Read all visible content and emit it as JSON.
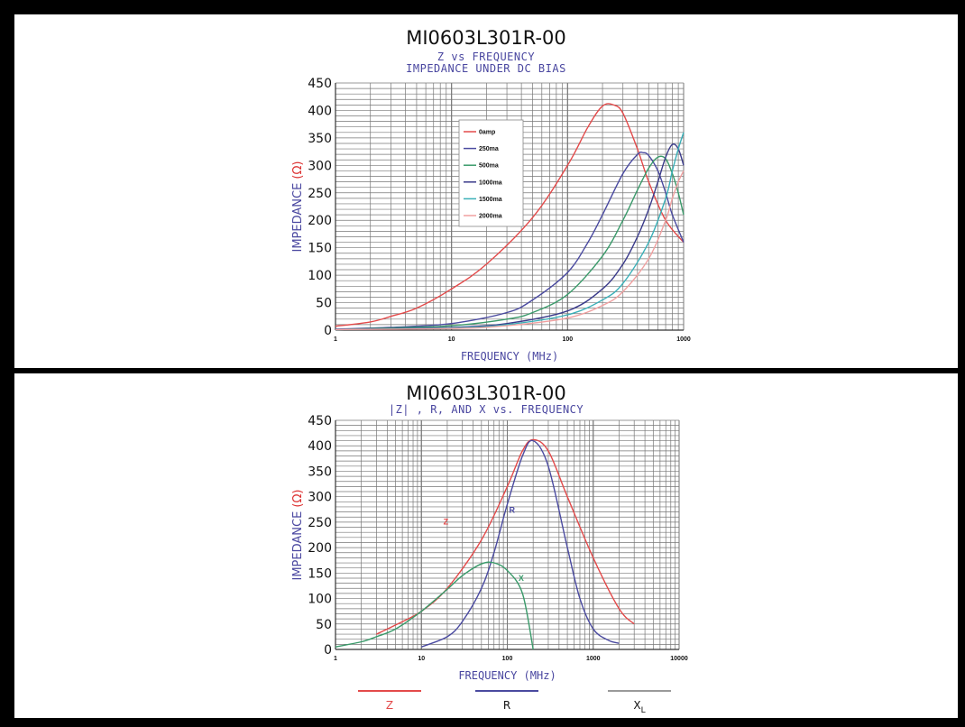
{
  "chart_data": [
    {
      "type": "line",
      "title": "MI0603L301R-00",
      "subtitle_1": "Z vs FREQUENCY",
      "subtitle_2": "IMPEDANCE UNDER DC BIAS",
      "ylabel": "IMPEDANCE",
      "ylabel_unit": "(Ω)",
      "xlabel": "FREQUENCY (MHz)",
      "x_scale": "log",
      "xlim": [
        1,
        1000
      ],
      "ylim": [
        0,
        450
      ],
      "yticks": [
        "0",
        "50",
        "100",
        "150",
        "200",
        "250",
        "300",
        "350",
        "400",
        "450"
      ],
      "xticks": [
        {
          "value": 1,
          "label": "1"
        },
        {
          "value": 10,
          "label": "10"
        },
        {
          "value": 100,
          "label": "100"
        },
        {
          "value": 1000,
          "label": "1000"
        }
      ],
      "grid": true,
      "legend_position": "upper-left-center",
      "series": [
        {
          "name": "0amp",
          "color": "#e34a4a",
          "x": [
            1,
            2,
            3,
            5,
            10,
            20,
            50,
            100,
            150,
            200,
            250,
            300,
            400,
            500,
            700,
            1000
          ],
          "y": [
            7,
            15,
            25,
            40,
            75,
            120,
            205,
            300,
            370,
            408,
            410,
            395,
            330,
            270,
            200,
            160
          ]
        },
        {
          "name": "250ma",
          "color": "#4a4aa0",
          "x": [
            1,
            3,
            10,
            30,
            50,
            100,
            150,
            200,
            300,
            400,
            450,
            500,
            600,
            700,
            800,
            1000
          ],
          "y": [
            2,
            5,
            12,
            32,
            55,
            105,
            160,
            210,
            285,
            320,
            323,
            318,
            290,
            250,
            210,
            160
          ]
        },
        {
          "name": "500ma",
          "color": "#3a9a6a",
          "x": [
            1,
            3,
            10,
            30,
            50,
            100,
            200,
            300,
            400,
            500,
            600,
            700,
            800,
            900,
            1000
          ],
          "y": [
            1,
            4,
            8,
            20,
            32,
            65,
            135,
            200,
            255,
            295,
            315,
            312,
            285,
            250,
            210
          ]
        },
        {
          "name": "1000ma",
          "color": "#3a3a8a",
          "x": [
            1,
            10,
            30,
            100,
            200,
            300,
            400,
            500,
            600,
            700,
            800,
            900,
            1000
          ],
          "y": [
            1,
            5,
            12,
            35,
            75,
            120,
            170,
            220,
            270,
            315,
            338,
            330,
            300
          ]
        },
        {
          "name": "1500ma",
          "color": "#3ab0b8",
          "x": [
            1,
            10,
            30,
            100,
            200,
            300,
            500,
            700,
            800,
            900,
            1000
          ],
          "y": [
            1,
            4,
            10,
            28,
            55,
            85,
            160,
            240,
            290,
            330,
            360
          ]
        },
        {
          "name": "2000ma",
          "color": "#f0a0a0",
          "x": [
            1,
            10,
            30,
            100,
            200,
            300,
            500,
            700,
            800,
            900,
            1000
          ],
          "y": [
            1,
            3,
            8,
            22,
            45,
            70,
            130,
            200,
            240,
            270,
            290
          ]
        }
      ]
    },
    {
      "type": "line",
      "title": "MI0603L301R-00",
      "subtitle_1": "|Z| , R, AND X vs. FREQUENCY",
      "ylabel": "IMPEDANCE",
      "ylabel_unit": "(Ω)",
      "xlabel": "FREQUENCY (MHz)",
      "x_scale": "log",
      "xlim": [
        1,
        10000
      ],
      "ylim": [
        0,
        450
      ],
      "yticks": [
        "0",
        "50",
        "100",
        "150",
        "200",
        "250",
        "300",
        "350",
        "400",
        "450"
      ],
      "xticks": [
        {
          "value": 1,
          "label": "1"
        },
        {
          "value": 10,
          "label": "10"
        },
        {
          "value": 100,
          "label": "100"
        },
        {
          "value": 1000,
          "label": "1000"
        },
        {
          "value": 10000,
          "label": "10000"
        }
      ],
      "grid": true,
      "legend_position": "bottom",
      "annotations": [
        {
          "text": "Z",
          "x": 18,
          "y": 245,
          "color": "#e34a4a"
        },
        {
          "text": "R",
          "x": 105,
          "y": 268,
          "color": "#4a4aa0"
        },
        {
          "text": "X",
          "x": 135,
          "y": 135,
          "color": "#3a9a6a"
        }
      ],
      "series": [
        {
          "name": "Z",
          "color": "#e34a4a",
          "x": [
            3,
            5,
            10,
            20,
            50,
            100,
            150,
            200,
            300,
            500,
            1000,
            2000,
            3000
          ],
          "y": [
            30,
            48,
            75,
            120,
            215,
            320,
            390,
            412,
            390,
            300,
            180,
            80,
            50
          ]
        },
        {
          "name": "R",
          "color": "#4a4aa0",
          "x": [
            10,
            20,
            30,
            50,
            70,
            100,
            150,
            200,
            300,
            500,
            700,
            1000,
            1500,
            2000
          ],
          "y": [
            5,
            25,
            55,
            120,
            190,
            285,
            380,
            410,
            360,
            200,
            100,
            40,
            18,
            12
          ]
        },
        {
          "name": "X",
          "color": "#3a9a6a",
          "x": [
            1,
            2,
            3,
            5,
            10,
            20,
            30,
            50,
            70,
            100,
            150,
            200
          ],
          "y": [
            5,
            15,
            25,
            40,
            75,
            118,
            145,
            168,
            170,
            155,
            110,
            0
          ]
        }
      ]
    }
  ],
  "bottom_legend": [
    {
      "label": "Z",
      "color": "#e34a4a"
    },
    {
      "label": "R",
      "color": "#4a4aa0"
    },
    {
      "label": "X",
      "sub": "L",
      "color": "#9a9a9a"
    }
  ]
}
